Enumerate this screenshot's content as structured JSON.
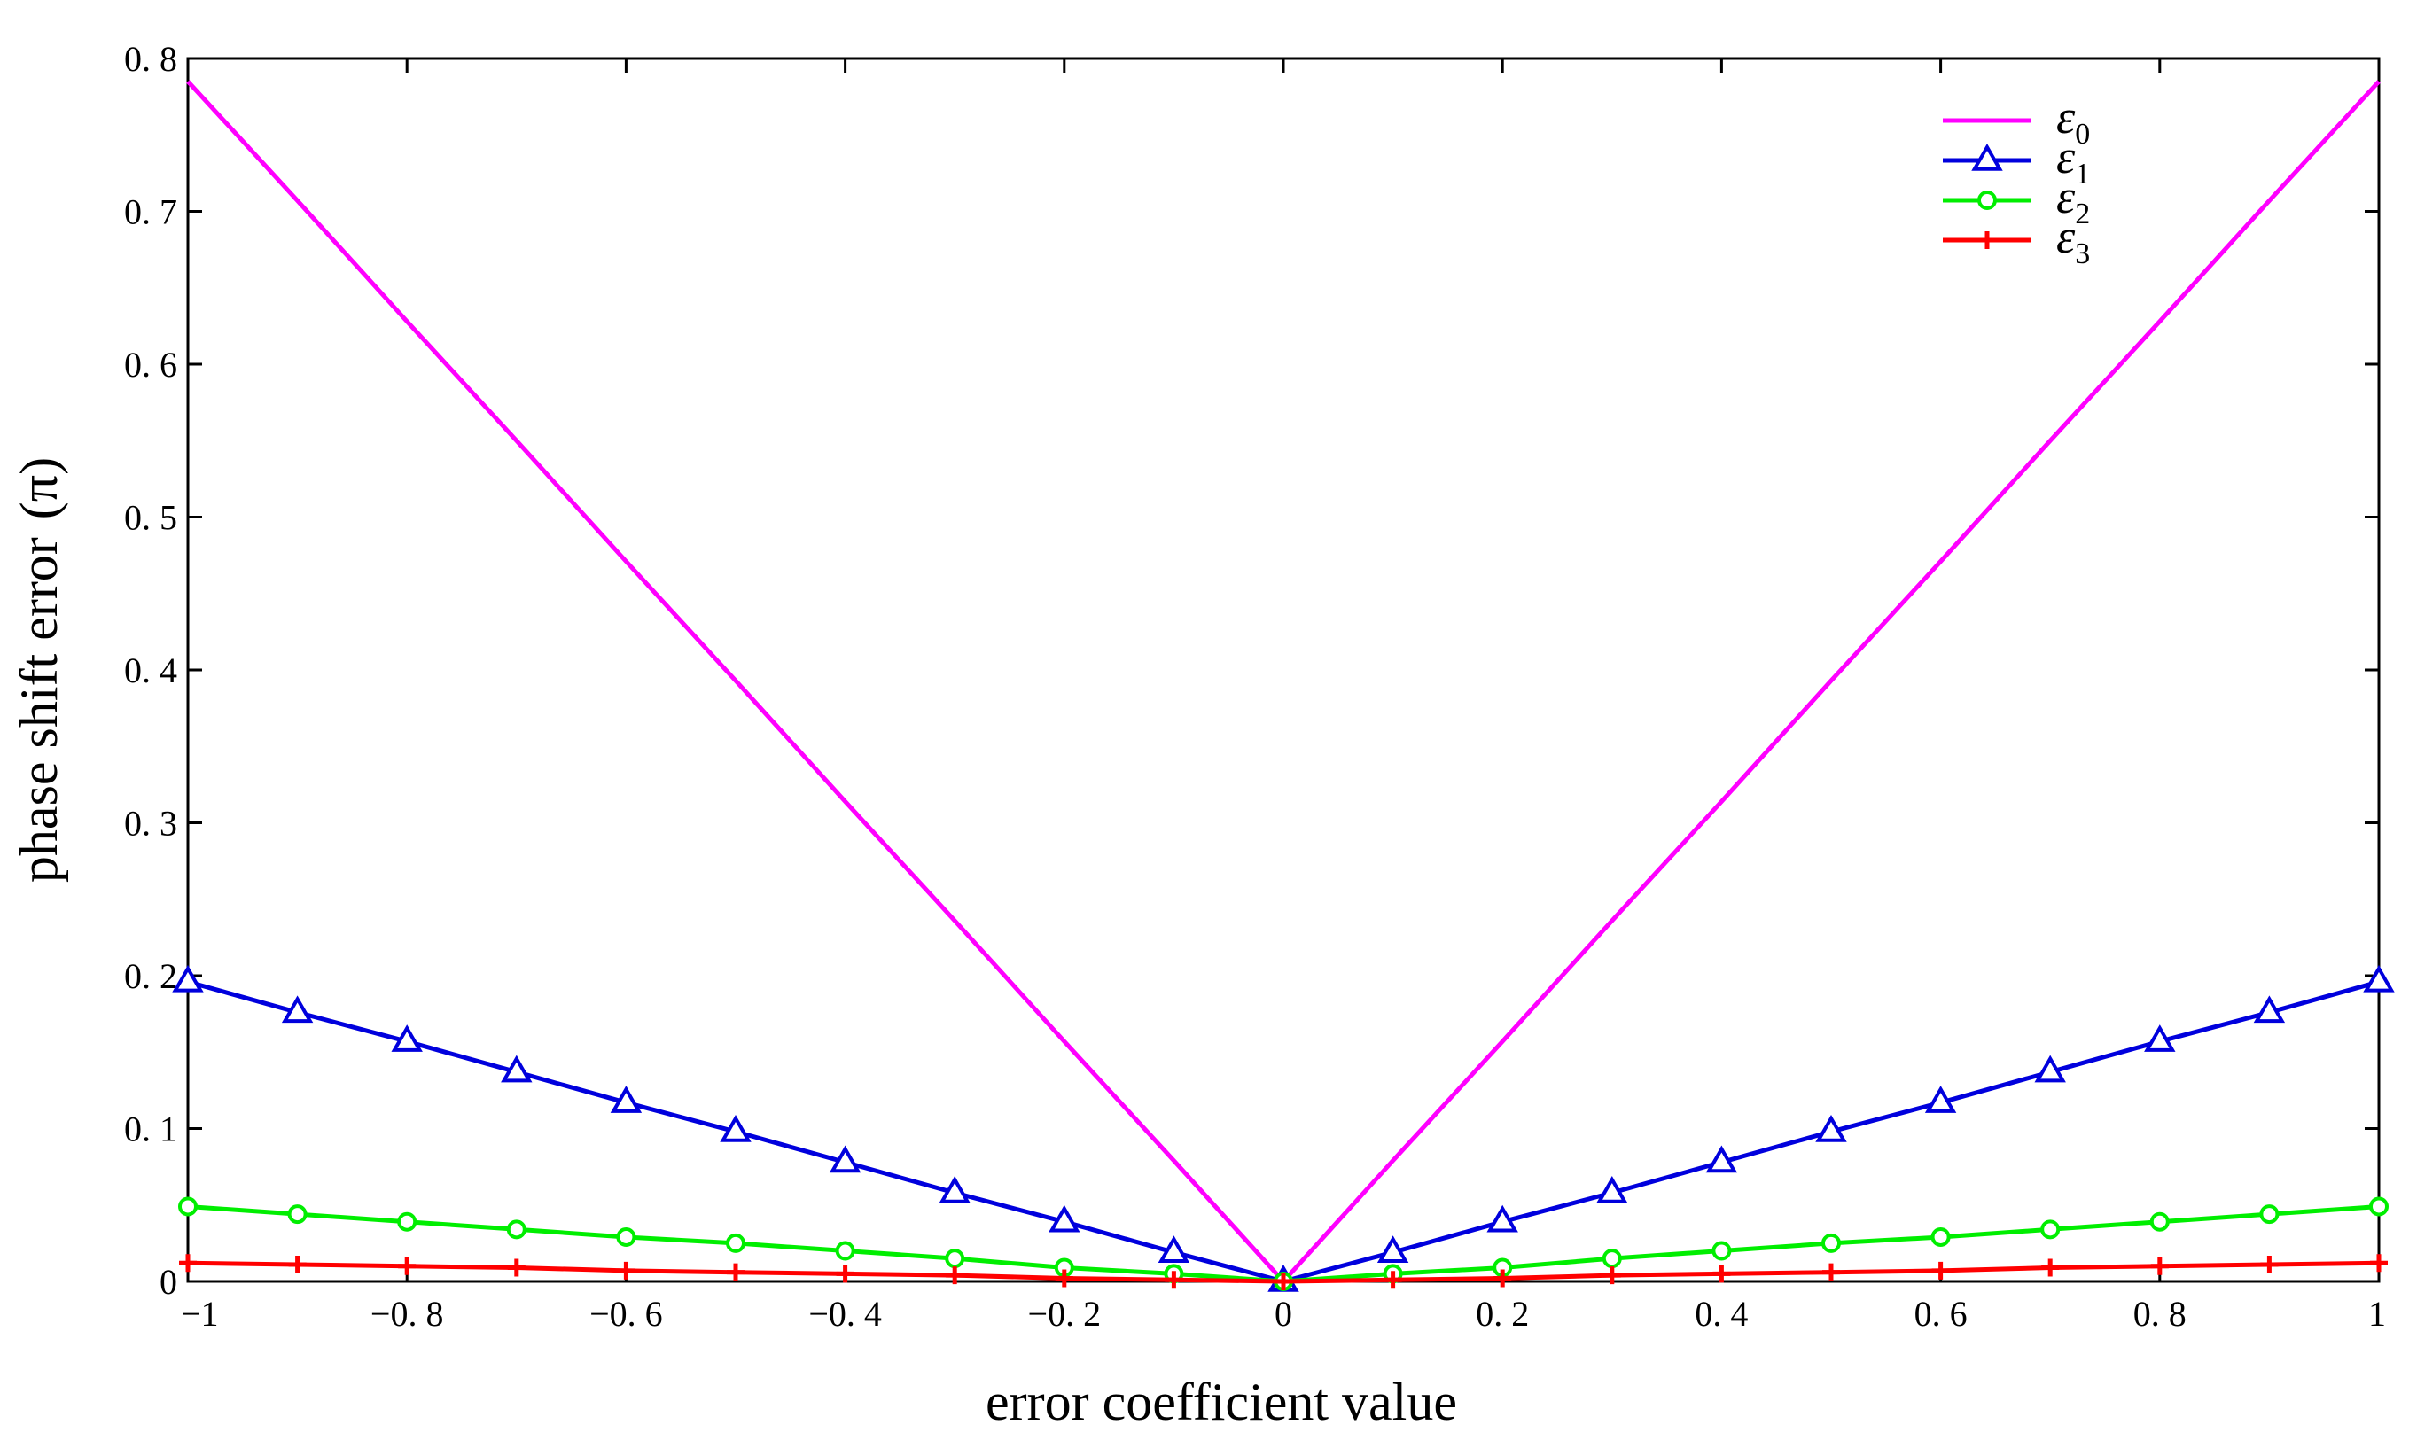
{
  "chart_data": {
    "type": "line",
    "xlabel": "error coefficient value",
    "ylabel": "phase shift error",
    "ylabel_unit": "(π)",
    "xlim": [
      -1,
      1
    ],
    "ylim": [
      0,
      0.8
    ],
    "x_ticks": [
      -1,
      -0.8,
      -0.6,
      -0.4,
      -0.2,
      0,
      0.2,
      0.4,
      0.6,
      0.8,
      1
    ],
    "x_tick_labels": [
      "−1",
      "−0. 8",
      "−0. 6",
      "−0. 4",
      "−0. 2",
      "0",
      "0. 2",
      "0. 4",
      "0. 6",
      "0. 8",
      "1"
    ],
    "y_ticks": [
      0,
      0.1,
      0.2,
      0.3,
      0.4,
      0.5,
      0.6,
      0.7,
      0.8
    ],
    "y_tick_labels": [
      "0",
      "0. 1",
      "0. 2",
      "0. 3",
      "0. 4",
      "0. 5",
      "0. 6",
      "0. 7",
      "0. 8"
    ],
    "grid": false,
    "legend_position": "top-right",
    "x": [
      -1,
      -0.9,
      -0.8,
      -0.7,
      -0.6,
      -0.5,
      -0.4,
      -0.3,
      -0.2,
      -0.1,
      0,
      0.1,
      0.2,
      0.3,
      0.4,
      0.5,
      0.6,
      0.7,
      0.8,
      0.9,
      1
    ],
    "series": [
      {
        "name": "ε",
        "subscript": "0",
        "color": "#ff00ff",
        "marker": "none",
        "values": [
          0.785,
          0.707,
          0.628,
          0.55,
          0.471,
          0.393,
          0.314,
          0.236,
          0.157,
          0.079,
          0,
          0.079,
          0.157,
          0.236,
          0.314,
          0.393,
          0.471,
          0.55,
          0.628,
          0.707,
          0.785
        ]
      },
      {
        "name": "ε",
        "subscript": "1",
        "color": "#0000dd",
        "marker": "triangle",
        "values": [
          0.196,
          0.176,
          0.157,
          0.137,
          0.117,
          0.098,
          0.078,
          0.058,
          0.039,
          0.019,
          0,
          0.019,
          0.039,
          0.058,
          0.078,
          0.098,
          0.117,
          0.137,
          0.157,
          0.176,
          0.196
        ]
      },
      {
        "name": "ε",
        "subscript": "2",
        "color": "#00ee00",
        "marker": "circle",
        "values": [
          0.049,
          0.044,
          0.039,
          0.034,
          0.029,
          0.025,
          0.02,
          0.015,
          0.009,
          0.005,
          0,
          0.005,
          0.009,
          0.015,
          0.02,
          0.025,
          0.029,
          0.034,
          0.039,
          0.044,
          0.049
        ]
      },
      {
        "name": "ε",
        "subscript": "3",
        "color": "#ff0000",
        "marker": "plus",
        "values": [
          0.012,
          0.011,
          0.01,
          0.009,
          0.007,
          0.006,
          0.005,
          0.004,
          0.002,
          0.001,
          0,
          0.001,
          0.002,
          0.004,
          0.005,
          0.006,
          0.007,
          0.009,
          0.01,
          0.011,
          0.012
        ]
      }
    ]
  }
}
